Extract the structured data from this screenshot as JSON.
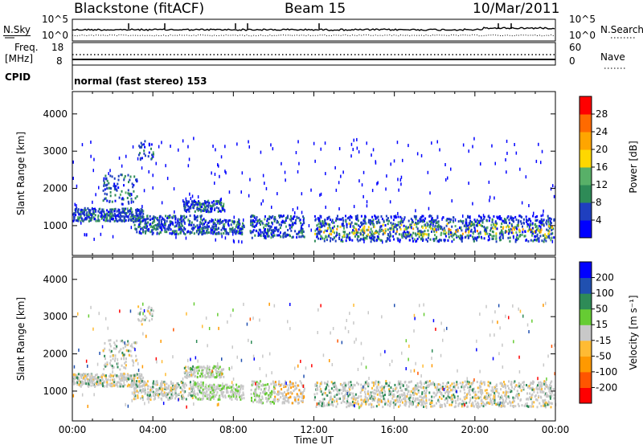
{
  "header": {
    "station": "Blackstone (fitACF)",
    "beam": "Beam 15",
    "date": "10/Mar/2011"
  },
  "side_labels": {
    "nsky": "N.Sky",
    "nsearch": "N.Search",
    "freq_line1": "Freq.",
    "freq_line2": "[MHz]",
    "nave": "Nave",
    "cpid": "CPID",
    "cpid_text": "normal (fast stereo) 153"
  },
  "noise_axis": {
    "left_top": "10^5",
    "left_bottom": "10^0",
    "right_top": "10^5",
    "right_bottom": "10^0"
  },
  "freq_axis": {
    "left_top": "18",
    "left_bottom": "8",
    "right_top": "60",
    "right_bottom": "0"
  },
  "colors": {
    "power": [
      "#0000ff",
      "#1f3fbf",
      "#2e8b57",
      "#58b068",
      "#ffd700",
      "#ffa500",
      "#ff6a00",
      "#ff0000"
    ],
    "velocity": [
      "#0000ff",
      "#2050b0",
      "#2e8b57",
      "#66cc33",
      "#c8c8c8",
      "#ffbb33",
      "#ff9900",
      "#ff5500",
      "#ff0000"
    ]
  },
  "chart_data": [
    {
      "type": "heatmap",
      "name": "power",
      "title": "",
      "xlabel": "",
      "ylabel": "Slant Range [km]",
      "ylim": [
        200,
        4600
      ],
      "xlim": [
        "00:00",
        "24:00"
      ],
      "yticks": [
        "1000",
        "2000",
        "3000",
        "4000"
      ],
      "colorbar_label": "Power [dB]",
      "colorbar_ticks": [
        "4",
        "8",
        "12",
        "16",
        "20",
        "24",
        "28"
      ],
      "colorbar_range": [
        0,
        32
      ]
    },
    {
      "type": "heatmap",
      "name": "velocity",
      "title": "",
      "xlabel": "Time UT",
      "ylabel": "Slant Range [km]",
      "ylim": [
        200,
        4600
      ],
      "xlim": [
        "00:00",
        "24:00"
      ],
      "xticks": [
        "00:00",
        "04:00",
        "08:00",
        "12:00",
        "16:00",
        "20:00",
        "00:00"
      ],
      "yticks": [
        "1000",
        "2000",
        "3000",
        "4000"
      ],
      "colorbar_label": "Velocity [m s⁻¹]",
      "colorbar_ticks": [
        "200",
        "100",
        "50",
        "15",
        "-15",
        "-50",
        "-100",
        "-200"
      ]
    }
  ]
}
